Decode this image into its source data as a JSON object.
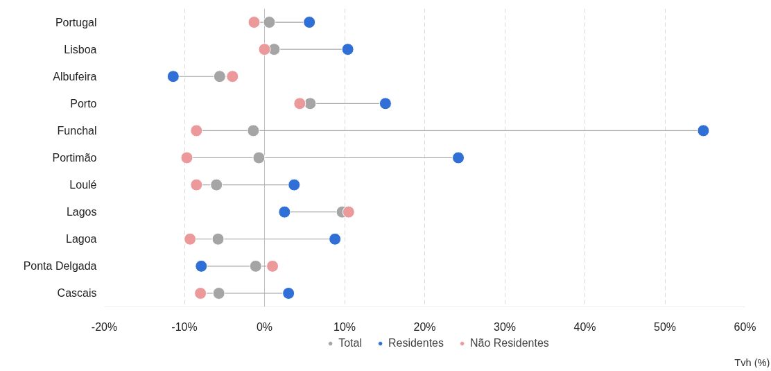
{
  "chart_data": {
    "type": "scatter",
    "orientation": "horizontal",
    "categories": [
      "Portugal",
      "Lisboa",
      "Albufeira",
      "Porto",
      "Funchal",
      "Portimão",
      "Loulé",
      "Lagos",
      "Lagoa",
      "Ponta Delgada",
      "Cascais"
    ],
    "series": [
      {
        "name": "Total",
        "color": "#a5a5a5",
        "values": [
          0.6,
          1.2,
          -5.6,
          5.7,
          -1.4,
          -0.7,
          -6.0,
          9.7,
          -5.8,
          -1.1,
          -5.7
        ]
      },
      {
        "name": "Residentes",
        "color": "#2f6fd6",
        "values": [
          5.6,
          10.4,
          -11.4,
          15.1,
          54.8,
          24.2,
          3.7,
          2.5,
          8.8,
          -7.9,
          3.0
        ]
      },
      {
        "name": "Não Residentes",
        "color": "#ec999c",
        "values": [
          -1.3,
          0.0,
          -4.0,
          4.4,
          -8.5,
          -9.7,
          -8.5,
          10.5,
          -9.3,
          1.0,
          -8.0
        ]
      }
    ],
    "xlim": [
      -20,
      60
    ],
    "xticks": [
      {
        "value": -20,
        "label": "-20%"
      },
      {
        "value": -10,
        "label": "-10%"
      },
      {
        "value": 0,
        "label": "0%"
      },
      {
        "value": 10,
        "label": "10%"
      },
      {
        "value": 20,
        "label": "20%"
      },
      {
        "value": 30,
        "label": "30%"
      },
      {
        "value": 40,
        "label": "40%"
      },
      {
        "value": 50,
        "label": "50%"
      },
      {
        "value": 60,
        "label": "60%"
      }
    ],
    "grid": "x",
    "legend": "bottom",
    "marker": "circle",
    "annotations": [
      "Tvh (%)"
    ]
  }
}
